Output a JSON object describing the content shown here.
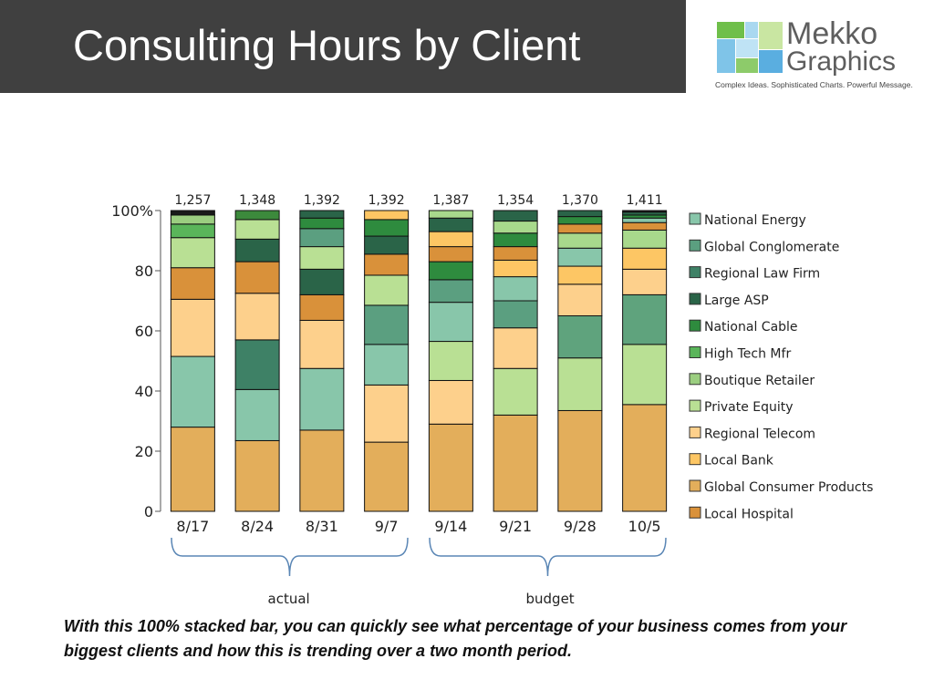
{
  "header": {
    "title": "Consulting Hours by Client"
  },
  "logo": {
    "name": "Mekko",
    "name2": "Graphics",
    "tagline": "Complex Ideas. Sophisticated Charts. Powerful Message."
  },
  "groups": [
    {
      "label": "actual",
      "from": 0,
      "to": 3
    },
    {
      "label": "budget",
      "from": 4,
      "to": 7
    }
  ],
  "caption": "With this 100% stacked bar, you can quickly see what percentage of your business comes from your biggest clients and how this is trending over a two month period.",
  "colors": {
    "Local Hospital": "#E3AE5B",
    "Global Consumer Products": "#88C6AA",
    "Local Bank": "#3E8166",
    "Regional Telecom": "#FDD08C",
    "Private Equity": "#D9913A",
    "Boutique Retailer": "#B9E094",
    "High Tech Mfr": "#2A6448",
    "National Cable": "#5AB55A",
    "Large ASP": "#9BCE80",
    "Regional Law Firm": "#1A1A1A",
    "Global Conglomerate": "#5B9F80",
    "National Energy": "#3C8A3C",
    "Light Teal": "#8CCAAF",
    "Gold": "#FDC664",
    "Mid Green": "#5FA37D",
    "Pale Green": "#A8D98C",
    "Dark Green": "#2E8B3E"
  },
  "chart_data": {
    "type": "bar",
    "stacked": "100%",
    "categories": [
      "8/17",
      "8/24",
      "8/31",
      "9/7",
      "9/14",
      "9/21",
      "9/28",
      "10/5"
    ],
    "totals": [
      "1,257",
      "1,348",
      "1,392",
      "1,392",
      "1,387",
      "1,354",
      "1,370",
      "1,411"
    ],
    "y_ticks": [
      "0",
      "20",
      "40",
      "60",
      "80",
      "100%"
    ],
    "ylim": [
      0,
      100
    ],
    "legend": [
      "National Energy",
      "Global Conglomerate",
      "Regional Law Firm",
      "Large ASP",
      "National Cable",
      "High Tech Mfr",
      "Boutique Retailer",
      "Private Equity",
      "Regional Telecom",
      "Local Bank",
      "Global Consumer Products",
      "Local Hospital"
    ],
    "legend_position": "right",
    "stacks": [
      [
        {
          "value": 28,
          "color": "#E3AE5B"
        },
        {
          "value": 23.5,
          "color": "#88C6AA"
        },
        {
          "value": 19,
          "color": "#FDD08C"
        },
        {
          "value": 10.5,
          "color": "#D9913A"
        },
        {
          "value": 10,
          "color": "#B9E094"
        },
        {
          "value": 4.5,
          "color": "#5AB55A"
        },
        {
          "value": 3,
          "color": "#9BCE80"
        },
        {
          "value": 1.5,
          "color": "#1A1A1A"
        }
      ],
      [
        {
          "value": 23.5,
          "color": "#E3AE5B"
        },
        {
          "value": 17,
          "color": "#88C6AA"
        },
        {
          "value": 16.5,
          "color": "#3E8166"
        },
        {
          "value": 15.5,
          "color": "#FDD08C"
        },
        {
          "value": 10.5,
          "color": "#D9913A"
        },
        {
          "value": 7.5,
          "color": "#2A6448"
        },
        {
          "value": 6.5,
          "color": "#B9E094"
        },
        {
          "value": 3,
          "color": "#3C8A3C"
        }
      ],
      [
        {
          "value": 27,
          "color": "#E3AE5B"
        },
        {
          "value": 20.5,
          "color": "#88C6AA"
        },
        {
          "value": 16,
          "color": "#FDD08C"
        },
        {
          "value": 8.5,
          "color": "#D9913A"
        },
        {
          "value": 8.5,
          "color": "#2A6448"
        },
        {
          "value": 7.5,
          "color": "#B9E094"
        },
        {
          "value": 6,
          "color": "#5B9F80"
        },
        {
          "value": 3.5,
          "color": "#2E8B3E"
        },
        {
          "value": 2.5,
          "color": "#2A6448"
        }
      ],
      [
        {
          "value": 23,
          "color": "#E3AE5B"
        },
        {
          "value": 19,
          "color": "#FDD08C"
        },
        {
          "value": 13.5,
          "color": "#88C6AA"
        },
        {
          "value": 13,
          "color": "#5B9F80"
        },
        {
          "value": 10,
          "color": "#B9E094"
        },
        {
          "value": 7,
          "color": "#D9913A"
        },
        {
          "value": 6,
          "color": "#2A6448"
        },
        {
          "value": 5.5,
          "color": "#2E8B3E"
        },
        {
          "value": 3,
          "color": "#FDC664"
        }
      ],
      [
        {
          "value": 29,
          "color": "#E3AE5B"
        },
        {
          "value": 14.5,
          "color": "#FDD08C"
        },
        {
          "value": 13,
          "color": "#B9E094"
        },
        {
          "value": 13,
          "color": "#88C6AA"
        },
        {
          "value": 7.5,
          "color": "#5B9F80"
        },
        {
          "value": 6,
          "color": "#2E8B3E"
        },
        {
          "value": 5,
          "color": "#D9913A"
        },
        {
          "value": 5,
          "color": "#FDC664"
        },
        {
          "value": 4.5,
          "color": "#2A6448"
        },
        {
          "value": 2.5,
          "color": "#A8D98C"
        }
      ],
      [
        {
          "value": 32,
          "color": "#E3AE5B"
        },
        {
          "value": 15.5,
          "color": "#B9E094"
        },
        {
          "value": 13.5,
          "color": "#FDD08C"
        },
        {
          "value": 9,
          "color": "#5B9F80"
        },
        {
          "value": 8,
          "color": "#88C6AA"
        },
        {
          "value": 5.5,
          "color": "#FDC664"
        },
        {
          "value": 4.5,
          "color": "#D9913A"
        },
        {
          "value": 4.5,
          "color": "#2E8B3E"
        },
        {
          "value": 4,
          "color": "#A8D98C"
        },
        {
          "value": 3.5,
          "color": "#2A6448"
        }
      ],
      [
        {
          "value": 33.5,
          "color": "#E3AE5B"
        },
        {
          "value": 17.5,
          "color": "#B9E094"
        },
        {
          "value": 14,
          "color": "#5FA37D"
        },
        {
          "value": 10.5,
          "color": "#FDD08C"
        },
        {
          "value": 6,
          "color": "#FDC664"
        },
        {
          "value": 6,
          "color": "#88C6AA"
        },
        {
          "value": 5,
          "color": "#A8D98C"
        },
        {
          "value": 3,
          "color": "#D9913A"
        },
        {
          "value": 2.5,
          "color": "#2E8B3E"
        },
        {
          "value": 2,
          "color": "#2A6448"
        }
      ],
      [
        {
          "value": 35.5,
          "color": "#E3AE5B"
        },
        {
          "value": 20,
          "color": "#B9E094"
        },
        {
          "value": 16.5,
          "color": "#5FA37D"
        },
        {
          "value": 8.5,
          "color": "#FDD08C"
        },
        {
          "value": 7,
          "color": "#FDC664"
        },
        {
          "value": 6,
          "color": "#A8D98C"
        },
        {
          "value": 2.5,
          "color": "#D9913A"
        },
        {
          "value": 1.5,
          "color": "#88C6AA"
        },
        {
          "value": 1,
          "color": "#2E8B3E"
        },
        {
          "value": 1,
          "color": "#2A6448"
        },
        {
          "value": 0.5,
          "color": "#1A1A1A"
        }
      ]
    ],
    "legend_colors": [
      "#88C6AA",
      "#5B9F80",
      "#3E8166",
      "#2A6448",
      "#2E8B3E",
      "#5AB55A",
      "#9BCE80",
      "#B9E094",
      "#FDD08C",
      "#FDC664",
      "#E3AE5B",
      "#D9913A"
    ]
  }
}
